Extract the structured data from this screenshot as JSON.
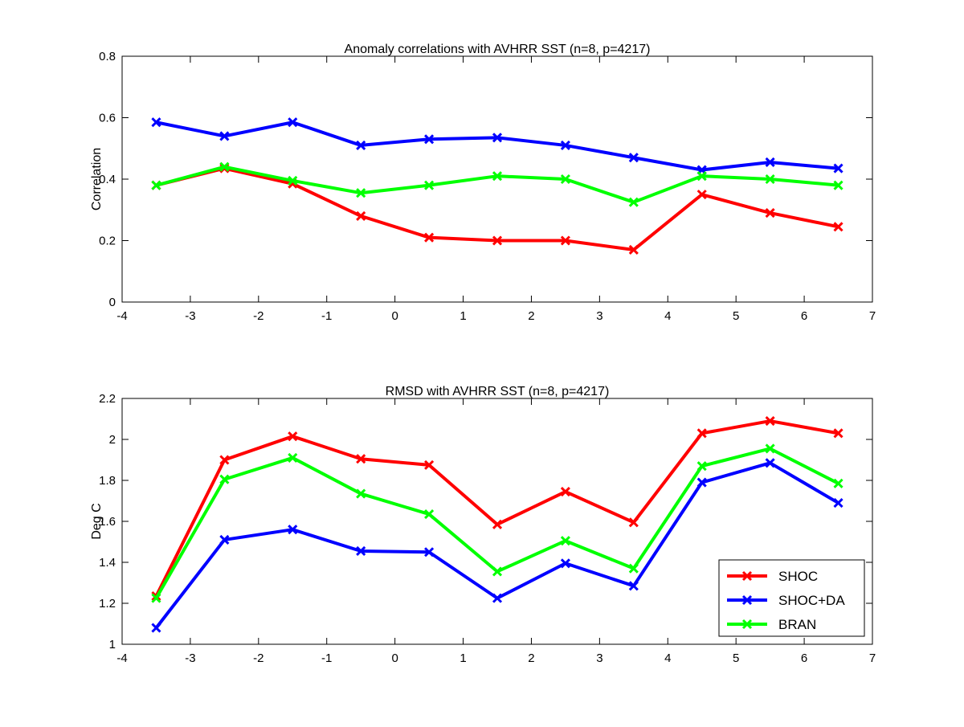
{
  "chart_data": [
    {
      "type": "line",
      "title": "Anomaly correlations with AVHRR SST (n=8, p=4217)",
      "xlabel": "",
      "ylabel": "Correlation",
      "xlim": [
        -4,
        7
      ],
      "ylim": [
        0,
        0.8
      ],
      "xticks": [
        -4,
        -3,
        -2,
        -1,
        0,
        1,
        2,
        3,
        4,
        5,
        6,
        7
      ],
      "yticks": [
        0,
        0.2,
        0.4,
        0.6,
        0.8
      ],
      "x": [
        -3.5,
        -2.5,
        -1.5,
        -0.5,
        0.5,
        1.5,
        2.5,
        3.5,
        4.5,
        5.5,
        6.5
      ],
      "grid": false,
      "series": [
        {
          "name": "SHOC",
          "color": "#ff0000",
          "values": [
            0.38,
            0.435,
            0.385,
            0.28,
            0.21,
            0.2,
            0.2,
            0.17,
            0.35,
            0.29,
            0.245
          ]
        },
        {
          "name": "SHOC+DA",
          "color": "#0000ff",
          "values": [
            0.585,
            0.54,
            0.585,
            0.51,
            0.53,
            0.535,
            0.51,
            0.47,
            0.43,
            0.455,
            0.435
          ]
        },
        {
          "name": "BRAN",
          "color": "#00ff00",
          "values": [
            0.38,
            0.44,
            0.395,
            0.355,
            0.38,
            0.41,
            0.4,
            0.325,
            0.41,
            0.4,
            0.38
          ]
        }
      ]
    },
    {
      "type": "line",
      "title": "RMSD with AVHRR SST (n=8, p=4217)",
      "xlabel": "",
      "ylabel": "Deg C",
      "xlim": [
        -4,
        7
      ],
      "ylim": [
        1,
        2.2
      ],
      "xticks": [
        -4,
        -3,
        -2,
        -1,
        0,
        1,
        2,
        3,
        4,
        5,
        6,
        7
      ],
      "yticks": [
        1,
        1.2,
        1.4,
        1.6,
        1.8,
        2,
        2.2
      ],
      "x": [
        -3.5,
        -2.5,
        -1.5,
        -0.5,
        0.5,
        1.5,
        2.5,
        3.5,
        4.5,
        5.5,
        6.5
      ],
      "grid": false,
      "legend": "bottom-right",
      "series": [
        {
          "name": "SHOC",
          "color": "#ff0000",
          "values": [
            1.235,
            1.9,
            2.015,
            1.905,
            1.875,
            1.585,
            1.745,
            1.595,
            2.03,
            2.09,
            2.03
          ]
        },
        {
          "name": "SHOC+DA",
          "color": "#0000ff",
          "values": [
            1.08,
            1.51,
            1.56,
            1.455,
            1.45,
            1.225,
            1.395,
            1.285,
            1.79,
            1.885,
            1.69
          ]
        },
        {
          "name": "BRAN",
          "color": "#00ff00",
          "values": [
            1.225,
            1.805,
            1.91,
            1.735,
            1.635,
            1.355,
            1.505,
            1.37,
            1.87,
            1.955,
            1.785
          ]
        }
      ]
    }
  ]
}
